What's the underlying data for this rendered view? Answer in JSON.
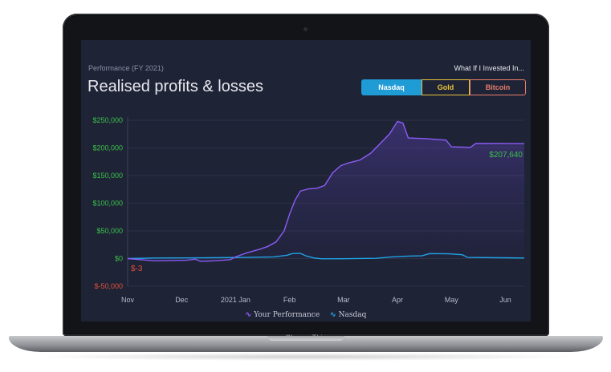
{
  "app": {
    "subtitle": "Performance (FY 2021)",
    "title": "Realised profits & losses",
    "what_if_label": "What If I Invested In...",
    "buttons": [
      {
        "label": "Nasdaq",
        "active": true
      },
      {
        "label": "Gold",
        "active": false
      },
      {
        "label": "Bitcoin",
        "active": false
      }
    ],
    "end_value_label": "$207,640",
    "start_value_label": "$-3",
    "laptop_label": "ChangeThis"
  },
  "colors": {
    "performance": "#8b5cf6",
    "nasdaq": "#1fa3e6",
    "positive_axis": "#39c24a",
    "negative_axis": "#e0503c",
    "gold": "#e8c33c",
    "bitcoin": "#e87e6a"
  },
  "chart_data": {
    "type": "area",
    "x_ticks": [
      "Nov",
      "Dec",
      "2021 Jan",
      "Feb",
      "Mar",
      "Apr",
      "May",
      "Jun"
    ],
    "y_ticks": [
      "$250,000",
      "$200,000",
      "$150,000",
      "$100,000",
      "$50,000",
      "$0",
      "$-50,000"
    ],
    "ylim": [
      -50000,
      250000
    ],
    "x_unit": "months since Nov 1, 2020",
    "xlim": [
      0,
      7.35
    ],
    "series": [
      {
        "name": "Your Performance",
        "points": [
          [
            0,
            -3
          ],
          [
            0.25,
            -2000
          ],
          [
            0.5,
            -4000
          ],
          [
            0.8,
            -3500
          ],
          [
            1.1,
            -3000
          ],
          [
            1.25,
            -1000
          ],
          [
            1.35,
            -5000
          ],
          [
            1.6,
            -4000
          ],
          [
            1.9,
            -2000
          ],
          [
            2.0,
            3000
          ],
          [
            2.2,
            10000
          ],
          [
            2.45,
            17000
          ],
          [
            2.6,
            22000
          ],
          [
            2.75,
            30000
          ],
          [
            2.9,
            50000
          ],
          [
            3.0,
            80000
          ],
          [
            3.1,
            105000
          ],
          [
            3.2,
            122000
          ],
          [
            3.35,
            126000
          ],
          [
            3.5,
            127000
          ],
          [
            3.65,
            132000
          ],
          [
            3.8,
            155000
          ],
          [
            3.95,
            168000
          ],
          [
            4.1,
            173000
          ],
          [
            4.3,
            178000
          ],
          [
            4.5,
            190000
          ],
          [
            4.7,
            210000
          ],
          [
            4.85,
            225000
          ],
          [
            5.0,
            248000
          ],
          [
            5.1,
            245000
          ],
          [
            5.2,
            218000
          ],
          [
            5.5,
            217000
          ],
          [
            5.9,
            214000
          ],
          [
            6.0,
            202000
          ],
          [
            6.35,
            201000
          ],
          [
            6.45,
            208000
          ],
          [
            6.8,
            208000
          ],
          [
            7.35,
            207640
          ]
        ]
      },
      {
        "name": "Nasdaq",
        "points": [
          [
            0,
            0
          ],
          [
            0.5,
            1000
          ],
          [
            1.5,
            1500
          ],
          [
            2.2,
            2000
          ],
          [
            2.7,
            3000
          ],
          [
            2.95,
            6000
          ],
          [
            3.05,
            9000
          ],
          [
            3.2,
            9500
          ],
          [
            3.3,
            5000
          ],
          [
            3.45,
            1000
          ],
          [
            3.6,
            -500
          ],
          [
            4.0,
            -300
          ],
          [
            4.6,
            500
          ],
          [
            4.9,
            3000
          ],
          [
            5.2,
            4500
          ],
          [
            5.45,
            5000
          ],
          [
            5.6,
            9000
          ],
          [
            5.95,
            8500
          ],
          [
            6.2,
            7000
          ],
          [
            6.3,
            2000
          ],
          [
            7.35,
            1000
          ]
        ]
      }
    ],
    "grid": true,
    "legend_position": "bottom-center"
  }
}
